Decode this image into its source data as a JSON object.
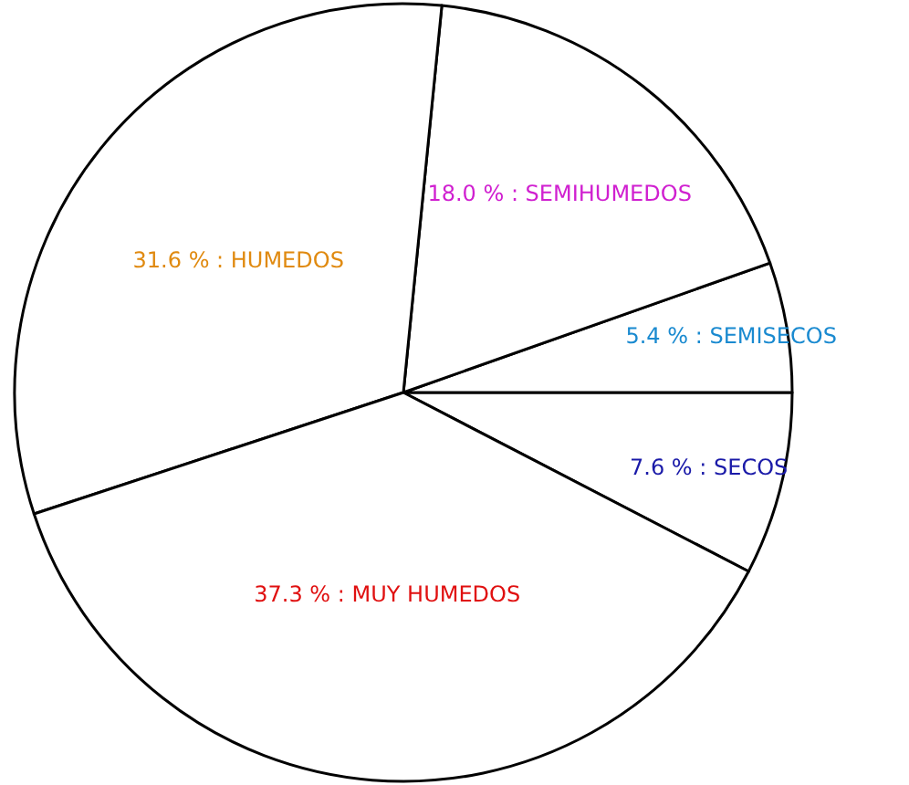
{
  "chart_data": {
    "type": "pie",
    "categories": [
      "7.6 % : SECOS",
      "5.4 % : SEMISECOS",
      "18.0 % : SEMIHUMEDOS",
      "31.6 % : HUMEDOS",
      "37.3 % : MUY HUMEDOS"
    ],
    "values": [
      7.6,
      5.4,
      18.0,
      31.6,
      37.3
    ],
    "colors": [
      "#ffffff",
      "#ffffff",
      "#ffffff",
      "#ffffff",
      "#ffffff"
    ],
    "legend": false
  }
}
